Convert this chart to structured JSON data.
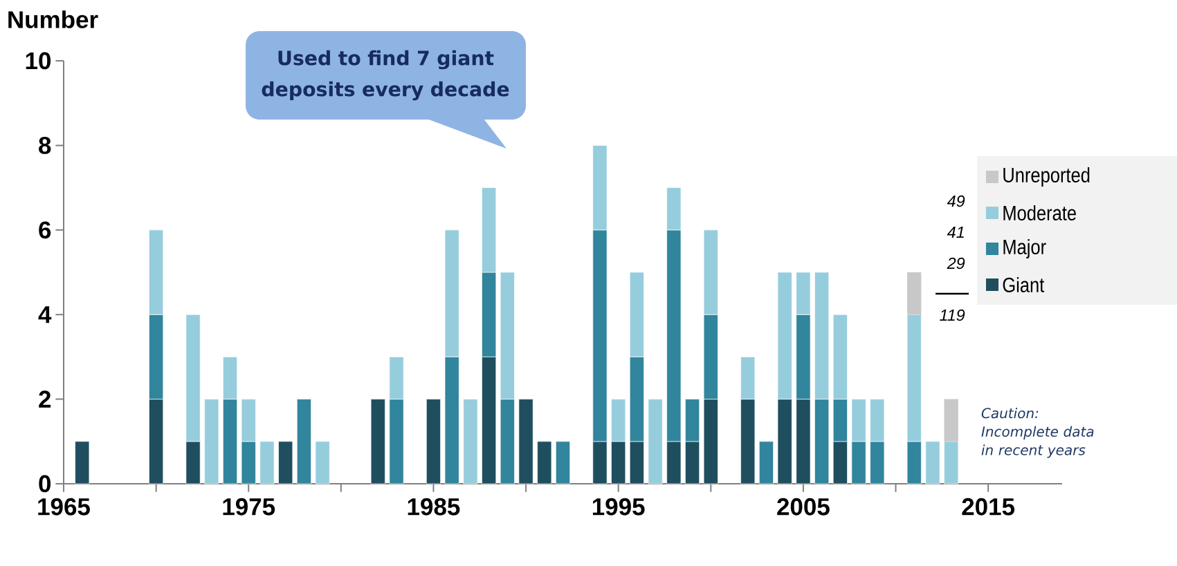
{
  "chart_data": {
    "type": "bar",
    "stacked": true,
    "ylabel": "Number",
    "x": [
      1966,
      1970,
      1972,
      1973,
      1974,
      1975,
      1976,
      1977,
      1978,
      1979,
      1982,
      1983,
      1985,
      1986,
      1987,
      1988,
      1989,
      1990,
      1991,
      1992,
      1994,
      1995,
      1996,
      1997,
      1998,
      1999,
      2000,
      2002,
      2003,
      2004,
      2005,
      2006,
      2007,
      2008,
      2009,
      2011,
      2012,
      2013
    ],
    "series": [
      {
        "name": "Giant",
        "color": "#1f4e5f",
        "values": [
          1,
          2,
          1,
          null,
          null,
          null,
          null,
          1,
          null,
          null,
          2,
          null,
          2,
          null,
          null,
          3,
          null,
          2,
          1,
          null,
          1,
          1,
          1,
          null,
          1,
          1,
          2,
          2,
          null,
          2,
          2,
          null,
          1,
          null,
          null,
          null,
          null,
          null
        ]
      },
      {
        "name": "Major",
        "color": "#31859c",
        "values": [
          null,
          2,
          null,
          null,
          2,
          1,
          null,
          null,
          2,
          null,
          null,
          2,
          null,
          3,
          null,
          2,
          2,
          null,
          null,
          1,
          5,
          null,
          2,
          null,
          5,
          1,
          2,
          null,
          1,
          null,
          2,
          2,
          1,
          1,
          1,
          1,
          null,
          null
        ]
      },
      {
        "name": "Moderate",
        "color": "#96cddd",
        "values": [
          null,
          2,
          3,
          2,
          1,
          1,
          1,
          null,
          null,
          1,
          null,
          1,
          null,
          3,
          2,
          2,
          3,
          null,
          null,
          null,
          2,
          1,
          2,
          2,
          1,
          null,
          2,
          1,
          null,
          3,
          1,
          3,
          2,
          1,
          1,
          3,
          1,
          1
        ]
      },
      {
        "name": "Unreported",
        "color": "#c8c8c8",
        "values": [
          null,
          null,
          null,
          null,
          null,
          null,
          null,
          null,
          null,
          null,
          null,
          null,
          null,
          null,
          null,
          null,
          null,
          null,
          null,
          null,
          null,
          null,
          null,
          null,
          null,
          null,
          null,
          null,
          null,
          null,
          null,
          null,
          null,
          null,
          null,
          1,
          null,
          1
        ]
      }
    ],
    "xlim": [
      1965,
      2019
    ],
    "xticks": [
      1965,
      {
        "value": 1970,
        "label": null
      },
      1975,
      {
        "value": 1980,
        "label": null
      },
      1985,
      {
        "value": 1990,
        "label": null
      },
      1995,
      {
        "value": 2000,
        "label": null
      },
      2005,
      {
        "value": 2010,
        "label": null
      },
      2015
    ],
    "ylim": [
      0,
      10
    ],
    "yticks": [
      0,
      2,
      4,
      6,
      8,
      10
    ],
    "legend": "right",
    "annotations": [
      "Used to find 7 giant deposits every decade",
      "49",
      "41",
      "29",
      "119",
      "Caution: Incomplete data in recent years"
    ]
  }
}
